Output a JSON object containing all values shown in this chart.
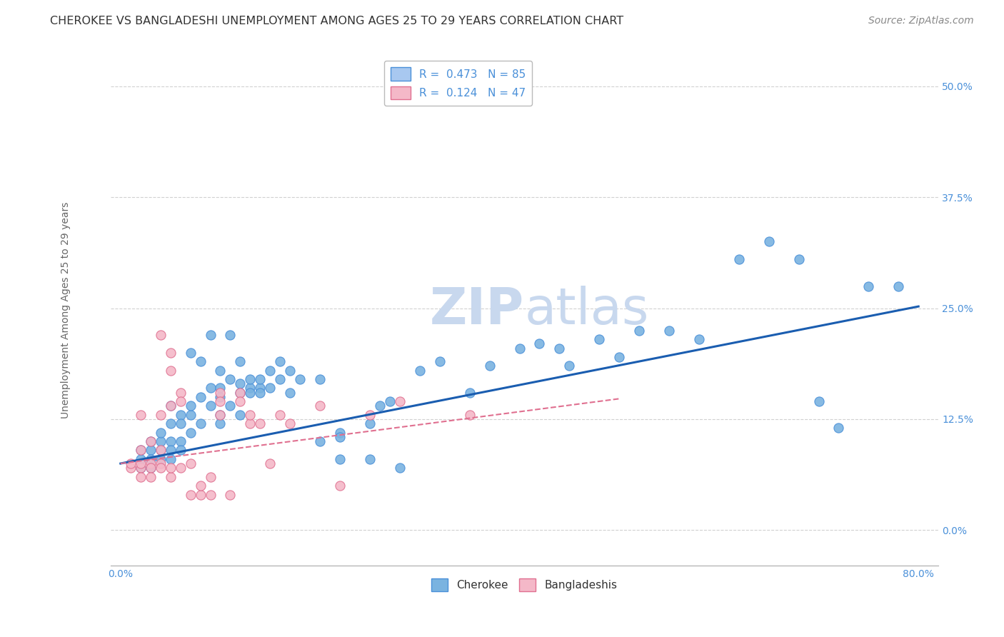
{
  "title": "CHEROKEE VS BANGLADESHI UNEMPLOYMENT AMONG AGES 25 TO 29 YEARS CORRELATION CHART",
  "source": "Source: ZipAtlas.com",
  "ylabel": "Unemployment Among Ages 25 to 29 years",
  "xlabel_ticks": [
    "0.0%",
    "",
    "",
    "",
    "80.0%"
  ],
  "xlabel_vals": [
    0.0,
    0.2,
    0.4,
    0.6,
    0.8
  ],
  "ylabel_ticks": [
    "0.0%",
    "12.5%",
    "25.0%",
    "37.5%",
    "50.0%"
  ],
  "ylabel_vals": [
    0.0,
    0.125,
    0.25,
    0.375,
    0.5
  ],
  "xlim": [
    -0.01,
    0.82
  ],
  "ylim": [
    -0.04,
    0.535
  ],
  "watermark_zip": "ZIP",
  "watermark_atlas": "atlas",
  "legend_line1": "R =  0.473   N = 85",
  "legend_line2": "R =  0.124   N = 47",
  "legend_color1": "#a8c8f0",
  "legend_edge1": "#4a90d9",
  "legend_color2": "#f4b8c8",
  "legend_edge2": "#e07090",
  "cherokee_scatter": [
    [
      0.02,
      0.08
    ],
    [
      0.02,
      0.09
    ],
    [
      0.02,
      0.07
    ],
    [
      0.03,
      0.09
    ],
    [
      0.03,
      0.08
    ],
    [
      0.03,
      0.1
    ],
    [
      0.03,
      0.07
    ],
    [
      0.04,
      0.09
    ],
    [
      0.04,
      0.1
    ],
    [
      0.04,
      0.08
    ],
    [
      0.04,
      0.11
    ],
    [
      0.05,
      0.1
    ],
    [
      0.05,
      0.09
    ],
    [
      0.05,
      0.12
    ],
    [
      0.05,
      0.08
    ],
    [
      0.05,
      0.14
    ],
    [
      0.06,
      0.13
    ],
    [
      0.06,
      0.12
    ],
    [
      0.06,
      0.1
    ],
    [
      0.06,
      0.09
    ],
    [
      0.07,
      0.13
    ],
    [
      0.07,
      0.14
    ],
    [
      0.07,
      0.11
    ],
    [
      0.07,
      0.2
    ],
    [
      0.08,
      0.15
    ],
    [
      0.08,
      0.12
    ],
    [
      0.08,
      0.19
    ],
    [
      0.09,
      0.14
    ],
    [
      0.09,
      0.16
    ],
    [
      0.09,
      0.22
    ],
    [
      0.1,
      0.15
    ],
    [
      0.1,
      0.13
    ],
    [
      0.1,
      0.18
    ],
    [
      0.1,
      0.16
    ],
    [
      0.1,
      0.12
    ],
    [
      0.11,
      0.17
    ],
    [
      0.11,
      0.14
    ],
    [
      0.11,
      0.22
    ],
    [
      0.12,
      0.155
    ],
    [
      0.12,
      0.165
    ],
    [
      0.12,
      0.13
    ],
    [
      0.12,
      0.19
    ],
    [
      0.13,
      0.16
    ],
    [
      0.13,
      0.155
    ],
    [
      0.13,
      0.17
    ],
    [
      0.14,
      0.16
    ],
    [
      0.14,
      0.17
    ],
    [
      0.14,
      0.155
    ],
    [
      0.15,
      0.18
    ],
    [
      0.15,
      0.16
    ],
    [
      0.16,
      0.17
    ],
    [
      0.16,
      0.19
    ],
    [
      0.17,
      0.18
    ],
    [
      0.17,
      0.155
    ],
    [
      0.18,
      0.17
    ],
    [
      0.2,
      0.17
    ],
    [
      0.2,
      0.1
    ],
    [
      0.22,
      0.11
    ],
    [
      0.22,
      0.105
    ],
    [
      0.22,
      0.08
    ],
    [
      0.25,
      0.12
    ],
    [
      0.25,
      0.08
    ],
    [
      0.26,
      0.14
    ],
    [
      0.27,
      0.145
    ],
    [
      0.28,
      0.07
    ],
    [
      0.3,
      0.18
    ],
    [
      0.32,
      0.19
    ],
    [
      0.35,
      0.155
    ],
    [
      0.37,
      0.185
    ],
    [
      0.4,
      0.205
    ],
    [
      0.42,
      0.21
    ],
    [
      0.44,
      0.205
    ],
    [
      0.45,
      0.185
    ],
    [
      0.48,
      0.215
    ],
    [
      0.5,
      0.195
    ],
    [
      0.52,
      0.225
    ],
    [
      0.55,
      0.225
    ],
    [
      0.58,
      0.215
    ],
    [
      0.62,
      0.305
    ],
    [
      0.65,
      0.325
    ],
    [
      0.68,
      0.305
    ],
    [
      0.7,
      0.145
    ],
    [
      0.72,
      0.115
    ],
    [
      0.75,
      0.275
    ],
    [
      0.78,
      0.275
    ]
  ],
  "bangladeshi_scatter": [
    [
      0.01,
      0.07
    ],
    [
      0.01,
      0.075
    ],
    [
      0.02,
      0.07
    ],
    [
      0.02,
      0.09
    ],
    [
      0.02,
      0.13
    ],
    [
      0.02,
      0.075
    ],
    [
      0.02,
      0.06
    ],
    [
      0.03,
      0.075
    ],
    [
      0.03,
      0.07
    ],
    [
      0.03,
      0.1
    ],
    [
      0.03,
      0.06
    ],
    [
      0.04,
      0.09
    ],
    [
      0.04,
      0.075
    ],
    [
      0.04,
      0.07
    ],
    [
      0.04,
      0.13
    ],
    [
      0.04,
      0.22
    ],
    [
      0.05,
      0.06
    ],
    [
      0.05,
      0.07
    ],
    [
      0.05,
      0.2
    ],
    [
      0.05,
      0.18
    ],
    [
      0.05,
      0.14
    ],
    [
      0.06,
      0.155
    ],
    [
      0.06,
      0.145
    ],
    [
      0.06,
      0.07
    ],
    [
      0.07,
      0.075
    ],
    [
      0.07,
      0.04
    ],
    [
      0.08,
      0.04
    ],
    [
      0.08,
      0.05
    ],
    [
      0.09,
      0.06
    ],
    [
      0.09,
      0.04
    ],
    [
      0.1,
      0.155
    ],
    [
      0.1,
      0.145
    ],
    [
      0.1,
      0.13
    ],
    [
      0.11,
      0.04
    ],
    [
      0.12,
      0.155
    ],
    [
      0.12,
      0.145
    ],
    [
      0.13,
      0.12
    ],
    [
      0.13,
      0.13
    ],
    [
      0.14,
      0.12
    ],
    [
      0.15,
      0.075
    ],
    [
      0.16,
      0.13
    ],
    [
      0.17,
      0.12
    ],
    [
      0.2,
      0.14
    ],
    [
      0.22,
      0.05
    ],
    [
      0.25,
      0.13
    ],
    [
      0.28,
      0.145
    ],
    [
      0.35,
      0.13
    ]
  ],
  "cherokee_line_x": [
    0.0,
    0.8
  ],
  "cherokee_line_y": [
    0.075,
    0.252
  ],
  "bangladeshi_line_x": [
    0.0,
    0.5
  ],
  "bangladeshi_line_y": [
    0.075,
    0.148
  ],
  "cherokee_color": "#7ab3e0",
  "cherokee_edge": "#4a90d9",
  "bangladeshi_color": "#f4b8c8",
  "bangladeshi_edge": "#e07090",
  "cherokee_line_color": "#1a5db0",
  "bangladeshi_line_color": "#e07090",
  "title_fontsize": 11.5,
  "source_fontsize": 10,
  "axis_label_fontsize": 10,
  "tick_fontsize": 10,
  "legend_fontsize": 11,
  "watermark_fontsize_zip": 52,
  "watermark_fontsize_atlas": 52,
  "watermark_color": "#c8d8ee",
  "background_color": "#ffffff",
  "grid_color": "#cccccc",
  "ytick_color": "#4a90d9",
  "xtick_color": "#4a90d9"
}
